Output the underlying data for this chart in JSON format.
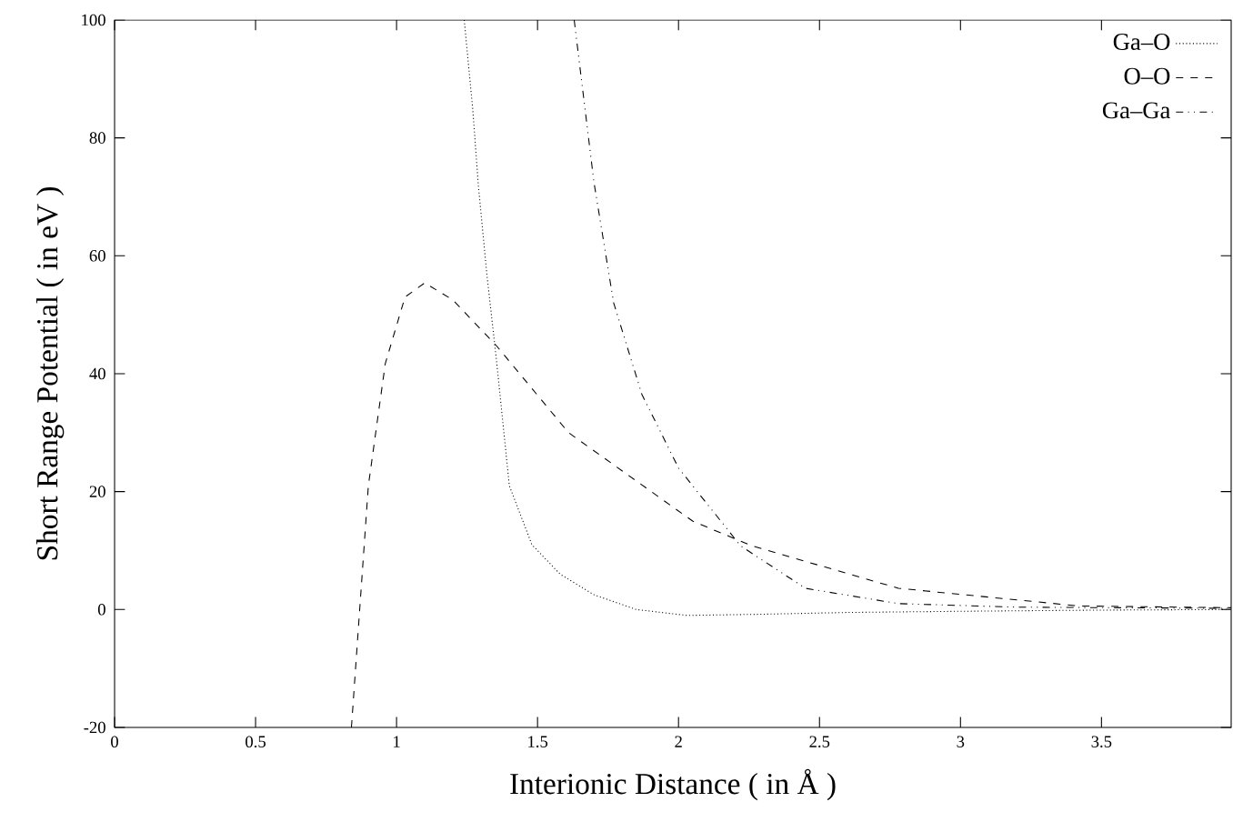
{
  "chart_data": {
    "type": "line",
    "xlabel": "Interionic Distance ( in Å )",
    "ylabel": "Short Range Potential  ( in eV )",
    "xlim": [
      0,
      3.96
    ],
    "ylim": [
      -20,
      100
    ],
    "xticks": [
      0,
      0.5,
      1,
      1.5,
      2,
      2.5,
      3,
      3.5
    ],
    "yticks": [
      -20,
      0,
      20,
      40,
      60,
      80,
      100
    ],
    "grid": false,
    "legend": "top right",
    "series": [
      {
        "name": "Ga–O",
        "color": "#000000",
        "line_style": "dotted",
        "x": [
          1.24,
          1.27,
          1.29,
          1.32,
          1.355,
          1.4,
          1.48,
          1.58,
          1.7,
          1.85,
          2.03,
          2.3,
          2.6,
          3.0,
          3.5,
          3.96
        ],
        "values": [
          100,
          85,
          72,
          57,
          42,
          21,
          11,
          6,
          2.5,
          0,
          -1,
          -0.8,
          -0.5,
          -0.3,
          -0.1,
          0
        ]
      },
      {
        "name": "O–O",
        "color": "#000000",
        "line_style": "dashed",
        "x": [
          0.84,
          0.87,
          0.9,
          0.96,
          1.03,
          1.1,
          1.2,
          1.355,
          1.61,
          2.05,
          2.26,
          2.78,
          3.42,
          3.96
        ],
        "values": [
          -20,
          0.5,
          21,
          41.7,
          53,
          55.4,
          52.5,
          44.7,
          30,
          15,
          10.8,
          3.6,
          0.6,
          0.3
        ]
      },
      {
        "name": "Ga–Ga",
        "color": "#000000",
        "line_style": "dashdotted",
        "x": [
          1.63,
          1.7,
          1.77,
          1.87,
          2.0,
          2.22,
          2.45,
          2.78,
          3.2,
          3.96
        ],
        "values": [
          100,
          72.5,
          52,
          36.5,
          24,
          10.8,
          3.6,
          1,
          0.4,
          0.2
        ]
      }
    ]
  }
}
